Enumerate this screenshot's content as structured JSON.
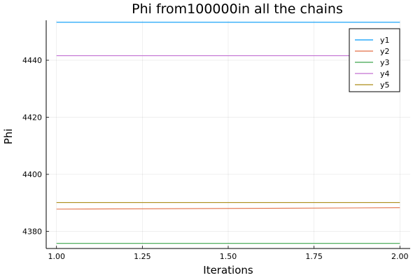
{
  "chart_data": {
    "type": "line",
    "title": "Phi from100000in all the chains",
    "xlabel": "Iterations",
    "ylabel": "Phi",
    "xlim": [
      0.97,
      2.03
    ],
    "ylim": [
      4374,
      4454
    ],
    "xticks": [
      1.0,
      1.25,
      1.5,
      1.75,
      2.0
    ],
    "xtick_labels": [
      "1.00",
      "1.25",
      "1.50",
      "1.75",
      "2.00"
    ],
    "yticks": [
      4380,
      4400,
      4420,
      4440
    ],
    "ytick_labels": [
      "4380",
      "4400",
      "4420",
      "4440"
    ],
    "grid": true,
    "legend_position": "top-right",
    "x": [
      1,
      2
    ],
    "series": [
      {
        "name": "y1",
        "color": "#009af9",
        "values": [
          4453.3,
          4453.3
        ]
      },
      {
        "name": "y2",
        "color": "#e26f46",
        "values": [
          4387.8,
          4388.3
        ]
      },
      {
        "name": "y3",
        "color": "#3da44d",
        "values": [
          4375.8,
          4375.8
        ]
      },
      {
        "name": "y4",
        "color": "#c271d2",
        "values": [
          4441.6,
          4441.6
        ]
      },
      {
        "name": "y5",
        "color": "#ac8d18",
        "values": [
          4390.1,
          4390.1
        ]
      }
    ]
  }
}
